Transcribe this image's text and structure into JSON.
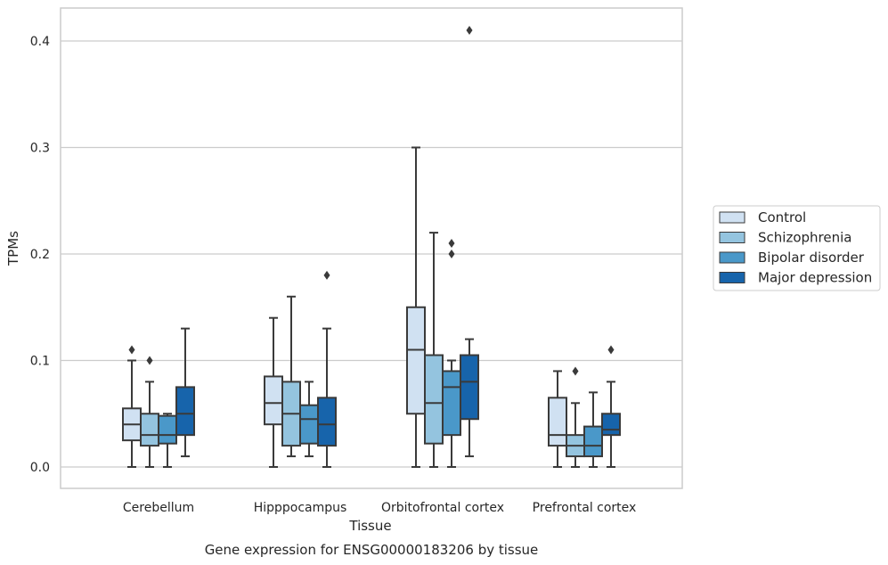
{
  "caption": "Gene expression for ENSG00000183206 by tissue",
  "chart_data": {
    "type": "box",
    "xlabel": "Tissue",
    "ylabel": "TPMs",
    "ylim": [
      -0.02,
      0.43
    ],
    "yticks": [
      "0.0",
      "0.1",
      "0.2",
      "0.3",
      "0.4"
    ],
    "grid": "horizontal",
    "legend_position": "right",
    "categories": [
      "Cerebellum",
      "Hipppocampus",
      "Orbitofrontal cortex",
      "Prefrontal cortex"
    ],
    "series": [
      {
        "name": "Control",
        "color": "#d0e1f2",
        "boxes": [
          {
            "whisker_low": 0.0,
            "q1": 0.025,
            "median": 0.04,
            "q3": 0.055,
            "whisker_high": 0.1,
            "outliers": [
              0.11
            ]
          },
          {
            "whisker_low": 0.0,
            "q1": 0.04,
            "median": 0.06,
            "q3": 0.085,
            "whisker_high": 0.14,
            "outliers": []
          },
          {
            "whisker_low": 0.0,
            "q1": 0.05,
            "median": 0.11,
            "q3": 0.15,
            "whisker_high": 0.3,
            "outliers": []
          },
          {
            "whisker_low": 0.0,
            "q1": 0.02,
            "median": 0.03,
            "q3": 0.065,
            "whisker_high": 0.09,
            "outliers": []
          }
        ]
      },
      {
        "name": "Schizophrenia",
        "color": "#94c4df",
        "boxes": [
          {
            "whisker_low": 0.0,
            "q1": 0.02,
            "median": 0.03,
            "q3": 0.05,
            "whisker_high": 0.08,
            "outliers": [
              0.1
            ]
          },
          {
            "whisker_low": 0.01,
            "q1": 0.02,
            "median": 0.05,
            "q3": 0.08,
            "whisker_high": 0.16,
            "outliers": []
          },
          {
            "whisker_low": 0.0,
            "q1": 0.022,
            "median": 0.06,
            "q3": 0.105,
            "whisker_high": 0.22,
            "outliers": []
          },
          {
            "whisker_low": 0.0,
            "q1": 0.01,
            "median": 0.02,
            "q3": 0.03,
            "whisker_high": 0.06,
            "outliers": [
              0.09
            ]
          }
        ]
      },
      {
        "name": "Bipolar disorder",
        "color": "#4a98c9",
        "boxes": [
          {
            "whisker_low": 0.0,
            "q1": 0.022,
            "median": 0.03,
            "q3": 0.048,
            "whisker_high": 0.05,
            "outliers": []
          },
          {
            "whisker_low": 0.01,
            "q1": 0.022,
            "median": 0.045,
            "q3": 0.058,
            "whisker_high": 0.08,
            "outliers": []
          },
          {
            "whisker_low": 0.0,
            "q1": 0.03,
            "median": 0.075,
            "q3": 0.09,
            "whisker_high": 0.1,
            "outliers": [
              0.2,
              0.21
            ]
          },
          {
            "whisker_low": 0.0,
            "q1": 0.01,
            "median": 0.02,
            "q3": 0.038,
            "whisker_high": 0.07,
            "outliers": []
          }
        ]
      },
      {
        "name": "Major depression",
        "color": "#1764ab",
        "boxes": [
          {
            "whisker_low": 0.01,
            "q1": 0.03,
            "median": 0.05,
            "q3": 0.075,
            "whisker_high": 0.13,
            "outliers": []
          },
          {
            "whisker_low": 0.0,
            "q1": 0.02,
            "median": 0.04,
            "q3": 0.065,
            "whisker_high": 0.13,
            "outliers": [
              0.18
            ]
          },
          {
            "whisker_low": 0.01,
            "q1": 0.045,
            "median": 0.08,
            "q3": 0.105,
            "whisker_high": 0.12,
            "outliers": [
              0.41
            ]
          },
          {
            "whisker_low": 0.0,
            "q1": 0.03,
            "median": 0.035,
            "q3": 0.05,
            "whisker_high": 0.08,
            "outliers": [
              0.11
            ]
          }
        ]
      }
    ]
  }
}
